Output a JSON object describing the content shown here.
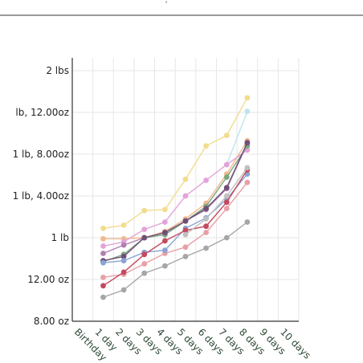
{
  "header": {
    "glyph": "'"
  },
  "chart_data": {
    "type": "line",
    "title": "",
    "xlabel": "",
    "ylabel": "",
    "x": [
      "Birthday",
      "1 day",
      "2 days",
      "3 days",
      "4 days",
      "5 days",
      "6 days",
      "7 days",
      "8 days",
      "9 days",
      "10 days"
    ],
    "y_ticks": [
      {
        "label": "8.00 oz",
        "value": 8
      },
      {
        "label": "12.00 oz",
        "value": 12
      },
      {
        "label": "1 lb",
        "value": 16
      },
      {
        "label": "1 lb, 4.00oz",
        "value": 20
      },
      {
        "label": "1 lb, 8.00oz",
        "value": 24
      },
      {
        "label": "lb, 12.00oz",
        "value": 28
      },
      {
        "label": "2 lbs",
        "value": 32
      }
    ],
    "ylim": [
      8,
      32
    ],
    "grid": true,
    "series": [
      {
        "color": "#f2dc8e",
        "points": [
          [
            1.5,
            16.9
          ],
          [
            2.5,
            17.2
          ],
          [
            3.5,
            18.6
          ],
          [
            4.5,
            18.7
          ],
          [
            5.5,
            21.6
          ],
          [
            6.5,
            24.8
          ],
          [
            7.5,
            25.8
          ],
          [
            8.5,
            29.4
          ]
        ]
      },
      {
        "color": "#bfe4ef",
        "points": [
          [
            7.5,
            23.0
          ],
          [
            8.5,
            28.1
          ]
        ]
      },
      {
        "color": "#f2b98e",
        "points": [
          [
            1.5,
            15.9
          ],
          [
            2.5,
            15.9
          ],
          [
            3.5,
            16.0
          ],
          [
            4.5,
            16.6
          ],
          [
            5.5,
            17.8
          ],
          [
            6.5,
            19.3
          ],
          [
            7.5,
            22.1
          ],
          [
            8.5,
            25.3
          ]
        ]
      },
      {
        "color": "#e3a3d9",
        "points": [
          [
            1.5,
            15.2
          ],
          [
            2.5,
            15.6
          ],
          [
            3.5,
            16.8
          ],
          [
            4.5,
            17.5
          ],
          [
            5.5,
            20.0
          ],
          [
            6.5,
            21.5
          ],
          [
            7.5,
            23.0
          ],
          [
            8.5,
            24.4
          ]
        ]
      },
      {
        "color": "#b07fb0",
        "points": [
          [
            1.5,
            14.5
          ],
          [
            2.5,
            15.3
          ],
          [
            3.5,
            16.0
          ],
          [
            4.5,
            16.3
          ],
          [
            5.5,
            17.6
          ],
          [
            6.5,
            18.7
          ],
          [
            7.5,
            20.7
          ],
          [
            8.5,
            25.0
          ]
        ]
      },
      {
        "color": "#7aa87e",
        "points": [
          [
            1.5,
            13.7
          ],
          [
            2.5,
            14.4
          ],
          [
            3.5,
            16.0
          ],
          [
            4.5,
            16.3
          ],
          [
            5.5,
            17.6
          ],
          [
            6.5,
            19.0
          ],
          [
            7.5,
            21.8
          ],
          [
            8.5,
            24.8
          ]
        ]
      },
      {
        "color": "#6f4e78",
        "points": [
          [
            1.5,
            13.8
          ],
          [
            2.5,
            14.2
          ],
          [
            3.5,
            16.0
          ],
          [
            4.5,
            16.5
          ],
          [
            5.5,
            17.6
          ],
          [
            6.5,
            18.8
          ],
          [
            7.5,
            20.8
          ],
          [
            8.5,
            25.1
          ]
        ]
      },
      {
        "color": "#e8a0a6",
        "points": [
          [
            1.5,
            12.2
          ],
          [
            2.5,
            12.5
          ],
          [
            3.5,
            13.5
          ],
          [
            4.5,
            14.5
          ],
          [
            5.5,
            15.1
          ],
          [
            6.5,
            16.5
          ],
          [
            7.5,
            18.8
          ],
          [
            8.5,
            21.3
          ]
        ]
      },
      {
        "color": "#8aa3d4",
        "points": [
          [
            1.5,
            13.6
          ],
          [
            2.5,
            13.8
          ],
          [
            3.5,
            14.6
          ],
          [
            4.5,
            14.8
          ],
          [
            5.5,
            16.9
          ],
          [
            6.5,
            17.9
          ],
          [
            7.5,
            19.7
          ],
          [
            8.5,
            22.1
          ]
        ]
      },
      {
        "color": "#c44a5e",
        "points": [
          [
            1.5,
            11.4
          ],
          [
            2.5,
            12.7
          ],
          [
            3.5,
            14.4
          ],
          [
            4.5,
            15.7
          ],
          [
            5.5,
            16.7
          ],
          [
            6.5,
            17.1
          ],
          [
            7.5,
            19.4
          ],
          [
            8.5,
            22.5
          ]
        ]
      },
      {
        "color": "#a6a6a6",
        "points": [
          [
            1.5,
            10.3
          ],
          [
            2.5,
            11.0
          ],
          [
            3.5,
            12.6
          ],
          [
            4.5,
            13.3
          ],
          [
            5.5,
            14.2
          ],
          [
            6.5,
            15.0
          ],
          [
            7.5,
            16.0
          ],
          [
            8.5,
            17.5
          ]
        ]
      },
      {
        "color": "#c0c0c0",
        "points": [
          [
            5.5,
            16.3
          ],
          [
            6.5,
            17.8
          ],
          [
            7.5,
            20.0
          ],
          [
            8.5,
            22.7
          ]
        ]
      }
    ]
  }
}
